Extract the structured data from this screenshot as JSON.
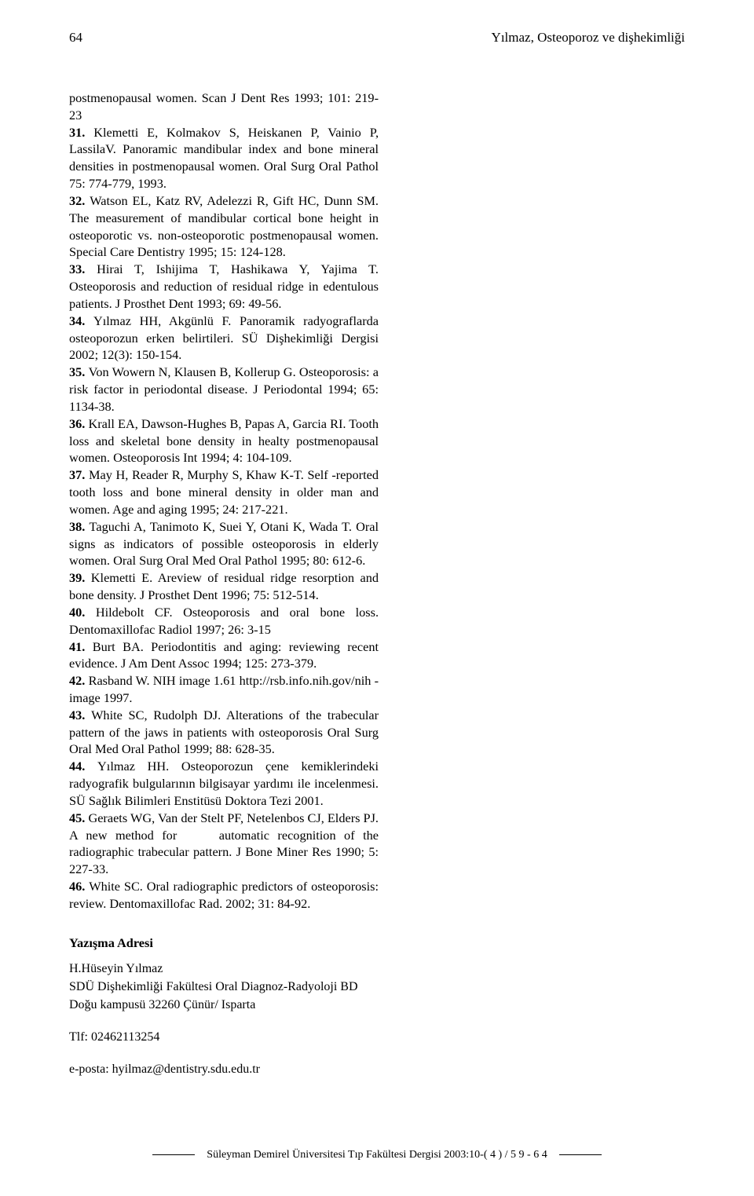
{
  "page_number": "64",
  "running_head": "Yılmaz, Osteoporoz ve dişhekimliği",
  "intro_fragment": "postmenopausal women. Scan J Dent Res 1993; 101: 219-23",
  "references": [
    {
      "n": "31.",
      "t": "Klemetti E, Kolmakov S, Heiskanen P, Vainio P, LassilaV. Panoramic mandibular index and bone mineral densities in postmenopausal women. Oral Surg Oral Pathol 75: 774-779, 1993."
    },
    {
      "n": "32.",
      "t": "Watson EL, Katz RV, Adelezzi R, Gift HC, Dunn SM. The measurement of mandibular cortical bone height in osteoporotic vs. non-osteoporotic postmenopausal women. Special Care Dentistry 1995; 15: 124-128."
    },
    {
      "n": "33.",
      "t": "Hirai T, Ishijima T, Hashikawa Y, Yajima T. Osteoporosis and reduction of residual ridge in edentulous patients. J Prosthet Dent 1993; 69: 49-56."
    },
    {
      "n": "34.",
      "t": "Yılmaz HH, Akgünlü F. Panoramik radyograflarda osteoporozun erken belirtileri. SÜ Dişhekimliği Dergisi 2002; 12(3): 150-154."
    },
    {
      "n": "35.",
      "t": "Von Wowern N, Klausen B, Kollerup G. Osteoporosis: a risk factor in periodontal disease. J Periodontal 1994; 65: 1134-38."
    },
    {
      "n": "36.",
      "t": "Krall EA, Dawson-Hughes B, Papas A, Garcia RI. Tooth loss and skeletal bone density in healty postmenopausal women. Osteoporosis Int 1994; 4: 104-109."
    },
    {
      "n": "37.",
      "t": "May H, Reader R, Murphy S, Khaw K-T. Self -reported tooth loss and bone mineral density in older man and women. Age and aging 1995; 24: 217-221."
    },
    {
      "n": "38.",
      "t": "Taguchi A, Tanimoto K, Suei Y, Otani K, Wada T. Oral signs as indicators of possible osteoporosis in elderly women. Oral Surg Oral Med Oral Pathol 1995; 80: 612-6."
    },
    {
      "n": "39.",
      "t": "Klemetti E. Areview of residual ridge resorption and bone density. J Prosthet Dent 1996; 75: 512-514."
    },
    {
      "n": "40.",
      "t": "Hildebolt CF. Osteoporosis and oral bone loss. Dentomaxillofac Radiol 1997; 26: 3-15"
    },
    {
      "n": "41.",
      "t": "Burt BA. Periodontitis and aging: reviewing recent evidence. J Am Dent Assoc 1994; 125: 273-379."
    },
    {
      "n": "42.",
      "t": "Rasband W. NIH image 1.61 http://rsb.info.nih.gov/nih - image 1997."
    },
    {
      "n": "43.",
      "t": "White SC, Rudolph DJ. Alterations of the trabecular pattern of the jaws in patients with osteoporosis Oral Surg Oral Med Oral Pathol 1999; 88: 628-35."
    },
    {
      "n": "44.",
      "t": "Yılmaz HH. Osteoporozun çene kemiklerindeki radyografik bulgularının bilgisayar yardımı ile incelenmesi. SÜ Sağlık Bilimleri Enstitüsü Doktora Tezi 2001."
    },
    {
      "n": "45.",
      "t": "Geraets WG, Van der Stelt PF, Netelenbos CJ, Elders PJ. A new method for    automatic recognition of the radiographic trabecular pattern. J Bone Miner Res 1990; 5: 227-33."
    },
    {
      "n": "46.",
      "t": "White SC. Oral radiographic predictors of osteoporosis: review. Dentomaxillofac Rad. 2002; 31: 84-92."
    }
  ],
  "contact_section_title": "Yazışma Adresi",
  "contact": {
    "name": "H.Hüseyin Yılmaz",
    "affil": "SDÜ Dişhekimliği Fakültesi Oral Diagnoz-Radyoloji BD",
    "addr": "Doğu kampusü 32260 Çünür/ Isparta",
    "tel_label": "Tlf: 02462113254",
    "email_label": "e-posta: hyilmaz@dentistry.sdu.edu.tr"
  },
  "footer": "Süleyman Demirel Üniversitesi Tıp Fakültesi Dergisi 2003:10-( 4 ) / 5 9 - 6 4",
  "colors": {
    "text": "#000000",
    "background": "#ffffff"
  },
  "fontsize": {
    "header": 17,
    "body": 16.3,
    "footer": 14
  }
}
